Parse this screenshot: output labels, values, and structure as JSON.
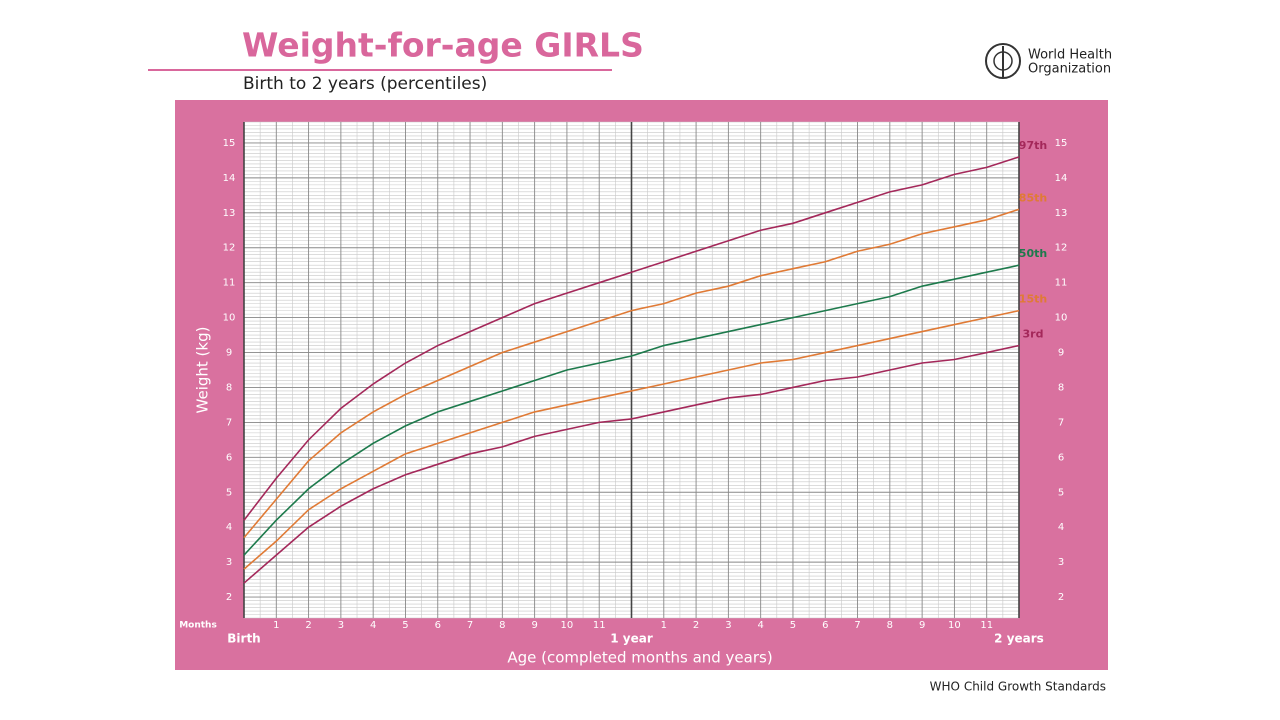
{
  "chart_data": {
    "type": "line",
    "title": "Weight-for-age GIRLS",
    "subtitle": "Birth to 2 years (percentiles)",
    "organization": [
      "World Health",
      "Organization"
    ],
    "y_label": "Weight (kg)",
    "x_label": "Age (completed months and years)",
    "x_unit_label": "Months",
    "source": "WHO Child Growth Standards",
    "x": [
      0,
      1,
      2,
      3,
      4,
      5,
      6,
      7,
      8,
      9,
      10,
      11,
      12,
      13,
      14,
      15,
      16,
      17,
      18,
      19,
      20,
      21,
      22,
      23,
      24
    ],
    "xlim": [
      0,
      24
    ],
    "xticks": [
      {
        "value": 0,
        "label": "Birth"
      },
      1,
      2,
      3,
      4,
      5,
      6,
      7,
      8,
      9,
      10,
      11,
      {
        "value": 12,
        "label": "1 year"
      },
      {
        "value": 13,
        "label": "1"
      },
      {
        "value": 14,
        "label": "2"
      },
      {
        "value": 15,
        "label": "3"
      },
      {
        "value": 16,
        "label": "4"
      },
      {
        "value": 17,
        "label": "5"
      },
      {
        "value": 18,
        "label": "6"
      },
      {
        "value": 19,
        "label": "7"
      },
      {
        "value": 20,
        "label": "8"
      },
      {
        "value": 21,
        "label": "9"
      },
      {
        "value": 22,
        "label": "10"
      },
      {
        "value": 23,
        "label": "11"
      },
      {
        "value": 24,
        "label": "2 years"
      }
    ],
    "ylim": [
      1.4,
      15.6
    ],
    "yticks": [
      2,
      3,
      4,
      5,
      6,
      7,
      8,
      9,
      10,
      11,
      12,
      13,
      14,
      15
    ],
    "grid": true,
    "series": [
      {
        "name": "97th",
        "color": "#a4285a",
        "values": [
          4.2,
          5.4,
          6.5,
          7.4,
          8.1,
          8.7,
          9.2,
          9.6,
          10.0,
          10.4,
          10.7,
          11.0,
          11.3,
          11.6,
          11.9,
          12.2,
          12.5,
          12.7,
          13.0,
          13.3,
          13.6,
          13.8,
          14.1,
          14.3,
          14.6
        ]
      },
      {
        "name": "85th",
        "color": "#e07a35",
        "values": [
          3.7,
          4.8,
          5.9,
          6.7,
          7.3,
          7.8,
          8.2,
          8.6,
          9.0,
          9.3,
          9.6,
          9.9,
          10.2,
          10.4,
          10.7,
          10.9,
          11.2,
          11.4,
          11.6,
          11.9,
          12.1,
          12.4,
          12.6,
          12.8,
          13.1
        ]
      },
      {
        "name": "50th",
        "color": "#1d7a4c",
        "values": [
          3.2,
          4.2,
          5.1,
          5.8,
          6.4,
          6.9,
          7.3,
          7.6,
          7.9,
          8.2,
          8.5,
          8.7,
          8.9,
          9.2,
          9.4,
          9.6,
          9.8,
          10.0,
          10.2,
          10.4,
          10.6,
          10.9,
          11.1,
          11.3,
          11.5
        ]
      },
      {
        "name": "15th",
        "color": "#e07a35",
        "values": [
          2.8,
          3.6,
          4.5,
          5.1,
          5.6,
          6.1,
          6.4,
          6.7,
          7.0,
          7.3,
          7.5,
          7.7,
          7.9,
          8.1,
          8.3,
          8.5,
          8.7,
          8.8,
          9.0,
          9.2,
          9.4,
          9.6,
          9.8,
          10.0,
          10.2
        ]
      },
      {
        "name": "3rd",
        "color": "#a4285a",
        "values": [
          2.4,
          3.2,
          4.0,
          4.6,
          5.1,
          5.5,
          5.8,
          6.1,
          6.3,
          6.6,
          6.8,
          7.0,
          7.1,
          7.3,
          7.5,
          7.7,
          7.8,
          8.0,
          8.2,
          8.3,
          8.5,
          8.7,
          8.8,
          9.0,
          9.2
        ]
      }
    ]
  }
}
